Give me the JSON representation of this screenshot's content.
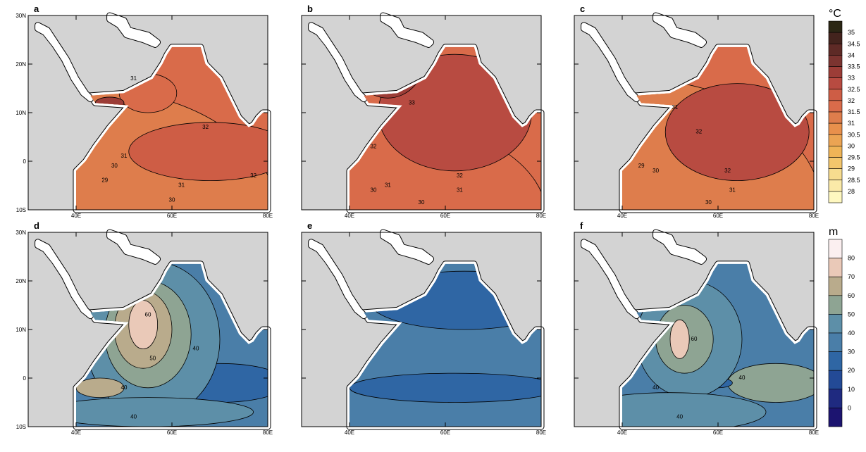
{
  "panels": [
    {
      "letter": "a",
      "contour_labels": [
        "31",
        "30",
        "32",
        "31",
        "29",
        "32",
        "31",
        "30"
      ]
    },
    {
      "letter": "b",
      "contour_labels": [
        "33",
        "32",
        "30",
        "31",
        "32",
        "31",
        "30"
      ]
    },
    {
      "letter": "c",
      "contour_labels": [
        "31",
        "30",
        "32",
        "29",
        "32",
        "31",
        "30"
      ]
    },
    {
      "letter": "d",
      "contour_labels": [
        "60",
        "50",
        "40",
        "40",
        "40"
      ]
    },
    {
      "letter": "e",
      "contour_labels": []
    },
    {
      "letter": "f",
      "contour_labels": [
        "60",
        "40",
        "40",
        "40"
      ]
    }
  ],
  "lat_labels": [
    "30N",
    "20N",
    "10N",
    "0",
    "10S"
  ],
  "lon_labels": [
    "40E",
    "60E",
    "80E"
  ],
  "colorbars": [
    {
      "unit": "°C",
      "levels": [
        "35",
        "34.5",
        "34",
        "33.5",
        "33",
        "32.5",
        "32",
        "31.5",
        "31",
        "30.5",
        "30",
        "29.5",
        "29",
        "28.5",
        "28"
      ],
      "colors": [
        "#2b2614",
        "#43231d",
        "#5e2a26",
        "#7c3430",
        "#9c3d37",
        "#b84b41",
        "#ce5d45",
        "#d96b4a",
        "#de7d4c",
        "#e8904c",
        "#eba453",
        "#efb457",
        "#f3c66c",
        "#f7dc8f",
        "#fbeaa8",
        "#fff8c0"
      ]
    },
    {
      "unit": "m",
      "levels": [
        "80",
        "70",
        "60",
        "50",
        "40",
        "30",
        "20",
        "10",
        "0"
      ],
      "colors": [
        "#fbeff0",
        "#eac9b8",
        "#b9ab8c",
        "#8ea493",
        "#5d8fa8",
        "#4a7ea8",
        "#2f66a4",
        "#234a96",
        "#1f2a80",
        "#1c1470"
      ]
    }
  ]
}
